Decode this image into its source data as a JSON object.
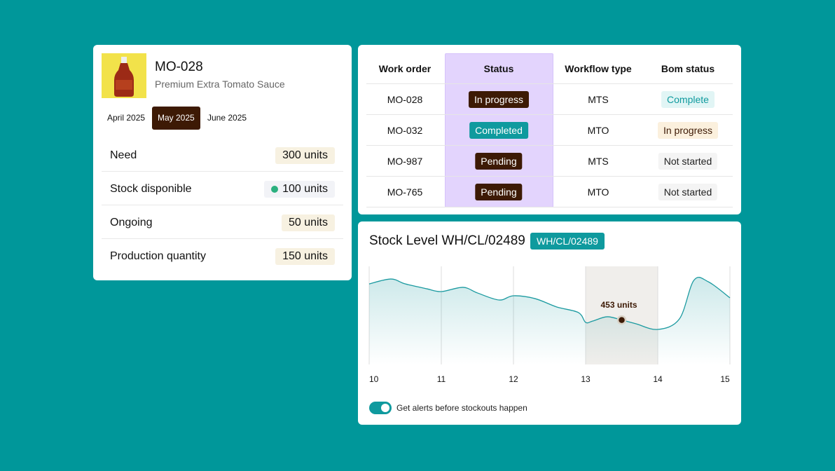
{
  "product": {
    "title": "MO-028",
    "subtitle": "Premium Extra Tomato Sauce"
  },
  "months": {
    "items": [
      "April 2025",
      "May 2025",
      "June 2025"
    ],
    "selected": 1
  },
  "metrics": [
    {
      "label": "Need",
      "value": "300 units"
    },
    {
      "label": "Stock disponible",
      "value": "100 units",
      "dot_color": "#2bb07f"
    },
    {
      "label": "Ongoing",
      "value": "50 units"
    },
    {
      "label": "Production quantity",
      "value": "150 units"
    }
  ],
  "table": {
    "columns": [
      "Work order",
      "Status",
      "Workflow type",
      "Bom status"
    ],
    "highlight_column": 1,
    "rows": [
      [
        "MO-028",
        {
          "text": "In progress",
          "bg": "#3d1a05",
          "fg": "#ffffff"
        },
        "MTS",
        {
          "text": "Complete",
          "bg": "#e1f5f5",
          "fg": "#0f9a9e"
        }
      ],
      [
        "MO-032",
        {
          "text": "Completed",
          "bg": "#0f9a9e",
          "fg": "#ffffff"
        },
        "MTO",
        {
          "text": "In progress",
          "bg": "#fbf0dd",
          "fg": "#3d1a05"
        }
      ],
      [
        "MO-987",
        {
          "text": "Pending",
          "bg": "#3d1a05",
          "fg": "#ffffff"
        },
        "MTS",
        {
          "text": "Not started",
          "bg": "#f4f4f4",
          "fg": "#222222"
        }
      ],
      [
        "MO-765",
        {
          "text": "Pending",
          "bg": "#3d1a05",
          "fg": "#ffffff"
        },
        "MTO",
        {
          "text": "Not started",
          "bg": "#f4f4f4",
          "fg": "#222222"
        }
      ]
    ]
  },
  "chart_data": {
    "type": "line",
    "title": "Stock Level WH/CL/02489",
    "tag": "WH/CL/02489",
    "x": [
      10,
      10.3,
      10.5,
      10.8,
      11,
      11.3,
      11.5,
      11.8,
      12,
      12.3,
      12.6,
      12.9,
      13,
      13.1,
      13.3,
      13.5,
      13.7,
      14,
      14.3,
      14.5,
      14.7,
      15
    ],
    "values": [
      821,
      871,
      821,
      771,
      743,
      786,
      729,
      657,
      700,
      671,
      586,
      529,
      429,
      443,
      486,
      453,
      414,
      357,
      464,
      857,
      843,
      679
    ],
    "value_labels": [
      null,
      null,
      null,
      null,
      null,
      null,
      null,
      null,
      null,
      null,
      null,
      null,
      null,
      null,
      null,
      "453 units",
      null,
      null,
      null,
      null,
      null,
      null
    ],
    "color": "#1b9aa0",
    "xlim": [
      10,
      15
    ],
    "ylim": [
      0,
      1000
    ],
    "xticks": [
      10,
      11,
      12,
      13,
      14,
      15
    ],
    "grid": true
  },
  "alert_toggle": {
    "label": "Get alerts before stockouts happen",
    "on": true
  }
}
